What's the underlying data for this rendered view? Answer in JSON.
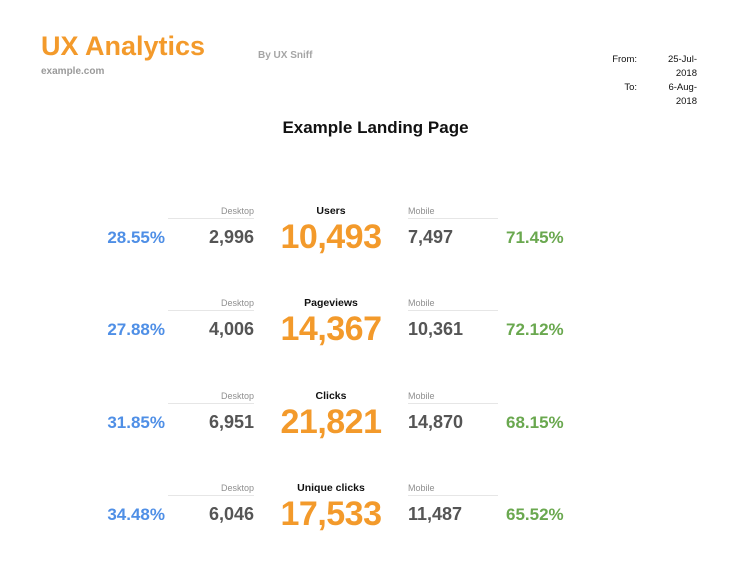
{
  "header": {
    "brand": "UX Analytics",
    "domain": "example.com",
    "byline": "By UX Sniff",
    "from_label": "From:",
    "from_value": "25-Jul-2018",
    "to_label": "To:",
    "to_value": "6-Aug-2018"
  },
  "title": "Example Landing Page",
  "colors": {
    "brand": "#f39a2b",
    "desktop_pct": "#4f8fe6",
    "mobile_pct": "#6aa84f"
  },
  "metrics": [
    {
      "label": "Users",
      "total": "10,493",
      "desktop_label": "Desktop",
      "desktop_value": "2,996",
      "desktop_pct": "28.55%",
      "mobile_label": "Mobile",
      "mobile_value": "7,497",
      "mobile_pct": "71.45%"
    },
    {
      "label": "Pageviews",
      "total": "14,367",
      "desktop_label": "Desktop",
      "desktop_value": "4,006",
      "desktop_pct": "27.88%",
      "mobile_label": "Mobile",
      "mobile_value": "10,361",
      "mobile_pct": "72.12%"
    },
    {
      "label": "Clicks",
      "total": "21,821",
      "desktop_label": "Desktop",
      "desktop_value": "6,951",
      "desktop_pct": "31.85%",
      "mobile_label": "Mobile",
      "mobile_value": "14,870",
      "mobile_pct": "68.15%"
    },
    {
      "label": "Unique clicks",
      "total": "17,533",
      "desktop_label": "Desktop",
      "desktop_value": "6,046",
      "desktop_pct": "34.48%",
      "mobile_label": "Mobile",
      "mobile_value": "11,487",
      "mobile_pct": "65.52%"
    }
  ]
}
